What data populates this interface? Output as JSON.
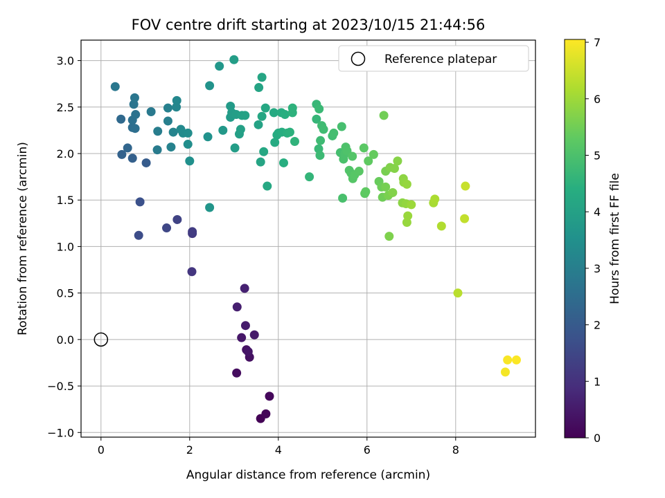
{
  "chart_data": {
    "type": "scatter",
    "title": "FOV centre drift starting at 2023/10/15 21:44:56",
    "xlabel": "Angular distance from reference (arcmin)",
    "ylabel": "Rotation from reference (arcmin)",
    "xlim": [
      -0.45,
      9.8
    ],
    "ylim": [
      -1.05,
      3.22
    ],
    "xticks": [
      0,
      2,
      4,
      6,
      8
    ],
    "yticks": [
      -1.0,
      -0.5,
      0.0,
      0.5,
      1.0,
      1.5,
      2.0,
      2.5,
      3.0
    ],
    "xtick_labels": [
      "0",
      "2",
      "4",
      "6",
      "8"
    ],
    "ytick_labels": [
      "−1.0",
      "−0.5",
      "0.0",
      "0.5",
      "1.0",
      "1.5",
      "2.0",
      "2.5",
      "3.0"
    ],
    "grid": true,
    "colormap": "viridis",
    "colorbar": {
      "label": "Hours from first FF file",
      "min": 0,
      "max": 7.05,
      "ticks": [
        0,
        1,
        2,
        3,
        4,
        5,
        6,
        7
      ],
      "tick_labels": [
        "0",
        "1",
        "2",
        "3",
        "4",
        "5",
        "6",
        "7"
      ]
    },
    "legend": {
      "placement": "top-right",
      "entries": [
        "Reference platepar"
      ]
    },
    "reference": {
      "x": 0,
      "y": 0
    },
    "points": [
      {
        "x": 3.6,
        "y": -0.85,
        "t": 0.05
      },
      {
        "x": 3.72,
        "y": -0.8,
        "t": 0.1
      },
      {
        "x": 3.8,
        "y": -0.61,
        "t": 0.15
      },
      {
        "x": 3.06,
        "y": -0.36,
        "t": 0.25
      },
      {
        "x": 3.35,
        "y": -0.19,
        "t": 0.3
      },
      {
        "x": 3.28,
        "y": -0.11,
        "t": 0.35
      },
      {
        "x": 3.32,
        "y": -0.13,
        "t": 0.4
      },
      {
        "x": 3.17,
        "y": 0.02,
        "t": 0.45
      },
      {
        "x": 3.46,
        "y": 0.05,
        "t": 0.5
      },
      {
        "x": 3.26,
        "y": 0.15,
        "t": 0.55
      },
      {
        "x": 3.07,
        "y": 0.35,
        "t": 0.6
      },
      {
        "x": 3.24,
        "y": 0.55,
        "t": 0.65
      },
      {
        "x": 2.05,
        "y": 0.73,
        "t": 1.1
      },
      {
        "x": 2.06,
        "y": 1.14,
        "t": 1.2
      },
      {
        "x": 2.06,
        "y": 1.16,
        "t": 1.25
      },
      {
        "x": 1.72,
        "y": 1.29,
        "t": 1.4
      },
      {
        "x": 1.48,
        "y": 1.2,
        "t": 1.5
      },
      {
        "x": 0.85,
        "y": 1.12,
        "t": 1.65
      },
      {
        "x": 0.88,
        "y": 1.48,
        "t": 1.75
      },
      {
        "x": 1.02,
        "y": 1.9,
        "t": 2.05
      },
      {
        "x": 0.71,
        "y": 1.95,
        "t": 2.15
      },
      {
        "x": 0.47,
        "y": 1.99,
        "t": 2.2
      },
      {
        "x": 0.6,
        "y": 2.06,
        "t": 2.3
      },
      {
        "x": 0.45,
        "y": 2.37,
        "t": 2.4
      },
      {
        "x": 0.71,
        "y": 2.28,
        "t": 2.5
      },
      {
        "x": 0.77,
        "y": 2.27,
        "t": 2.55
      },
      {
        "x": 0.71,
        "y": 2.36,
        "t": 2.6
      },
      {
        "x": 0.78,
        "y": 2.42,
        "t": 2.65
      },
      {
        "x": 0.74,
        "y": 2.53,
        "t": 2.7
      },
      {
        "x": 0.76,
        "y": 2.6,
        "t": 2.75
      },
      {
        "x": 0.32,
        "y": 2.72,
        "t": 2.8
      },
      {
        "x": 1.13,
        "y": 2.45,
        "t": 2.85
      },
      {
        "x": 1.27,
        "y": 2.04,
        "t": 2.9
      },
      {
        "x": 1.28,
        "y": 2.24,
        "t": 2.95
      },
      {
        "x": 1.51,
        "y": 2.35,
        "t": 3.0
      },
      {
        "x": 1.51,
        "y": 2.49,
        "t": 3.05
      },
      {
        "x": 1.58,
        "y": 2.07,
        "t": 3.1
      },
      {
        "x": 1.63,
        "y": 2.23,
        "t": 3.15
      },
      {
        "x": 1.7,
        "y": 2.5,
        "t": 3.2
      },
      {
        "x": 1.71,
        "y": 2.57,
        "t": 3.25
      },
      {
        "x": 1.8,
        "y": 2.26,
        "t": 3.3
      },
      {
        "x": 1.85,
        "y": 2.22,
        "t": 3.35
      },
      {
        "x": 1.96,
        "y": 2.22,
        "t": 3.4
      },
      {
        "x": 1.96,
        "y": 2.1,
        "t": 3.45
      },
      {
        "x": 2.0,
        "y": 1.92,
        "t": 3.5
      },
      {
        "x": 2.41,
        "y": 2.18,
        "t": 3.55
      },
      {
        "x": 2.45,
        "y": 2.73,
        "t": 3.6
      },
      {
        "x": 2.45,
        "y": 1.42,
        "t": 3.65
      },
      {
        "x": 2.67,
        "y": 2.94,
        "t": 3.7
      },
      {
        "x": 2.75,
        "y": 2.25,
        "t": 3.75
      },
      {
        "x": 2.92,
        "y": 2.51,
        "t": 3.8
      },
      {
        "x": 2.92,
        "y": 2.39,
        "t": 3.82
      },
      {
        "x": 2.95,
        "y": 2.44,
        "t": 3.85
      },
      {
        "x": 3.0,
        "y": 3.01,
        "t": 3.88
      },
      {
        "x": 3.02,
        "y": 2.06,
        "t": 3.9
      },
      {
        "x": 3.05,
        "y": 2.42,
        "t": 3.92
      },
      {
        "x": 3.12,
        "y": 2.21,
        "t": 3.95
      },
      {
        "x": 3.15,
        "y": 2.26,
        "t": 3.98
      },
      {
        "x": 3.18,
        "y": 2.41,
        "t": 4.0
      },
      {
        "x": 3.25,
        "y": 2.41,
        "t": 4.02
      },
      {
        "x": 3.55,
        "y": 2.31,
        "t": 4.05
      },
      {
        "x": 3.56,
        "y": 2.71,
        "t": 4.08
      },
      {
        "x": 3.6,
        "y": 1.91,
        "t": 4.1
      },
      {
        "x": 3.63,
        "y": 2.82,
        "t": 4.12
      },
      {
        "x": 3.63,
        "y": 2.4,
        "t": 4.15
      },
      {
        "x": 3.67,
        "y": 2.02,
        "t": 4.18
      },
      {
        "x": 3.71,
        "y": 2.49,
        "t": 4.2
      },
      {
        "x": 3.75,
        "y": 1.65,
        "t": 4.22
      },
      {
        "x": 3.9,
        "y": 2.44,
        "t": 4.25
      },
      {
        "x": 3.92,
        "y": 2.12,
        "t": 4.28
      },
      {
        "x": 3.97,
        "y": 2.2,
        "t": 4.3
      },
      {
        "x": 4.0,
        "y": 2.22,
        "t": 4.32
      },
      {
        "x": 4.07,
        "y": 2.44,
        "t": 4.35
      },
      {
        "x": 4.08,
        "y": 2.23,
        "t": 4.38
      },
      {
        "x": 4.12,
        "y": 1.9,
        "t": 4.4
      },
      {
        "x": 4.15,
        "y": 2.42,
        "t": 4.42
      },
      {
        "x": 4.2,
        "y": 2.22,
        "t": 4.45
      },
      {
        "x": 4.26,
        "y": 2.23,
        "t": 4.48
      },
      {
        "x": 4.32,
        "y": 2.44,
        "t": 4.5
      },
      {
        "x": 4.32,
        "y": 2.49,
        "t": 4.52
      },
      {
        "x": 4.37,
        "y": 2.13,
        "t": 4.55
      },
      {
        "x": 4.7,
        "y": 1.75,
        "t": 4.6
      },
      {
        "x": 4.86,
        "y": 2.37,
        "t": 4.65
      },
      {
        "x": 4.86,
        "y": 2.53,
        "t": 4.68
      },
      {
        "x": 4.91,
        "y": 2.05,
        "t": 4.7
      },
      {
        "x": 4.92,
        "y": 2.48,
        "t": 4.72
      },
      {
        "x": 4.94,
        "y": 1.98,
        "t": 4.75
      },
      {
        "x": 4.95,
        "y": 2.14,
        "t": 4.78
      },
      {
        "x": 4.98,
        "y": 2.3,
        "t": 4.8
      },
      {
        "x": 5.02,
        "y": 2.26,
        "t": 4.82
      },
      {
        "x": 5.22,
        "y": 2.19,
        "t": 4.85
      },
      {
        "x": 5.25,
        "y": 2.22,
        "t": 4.88
      },
      {
        "x": 5.4,
        "y": 2.01,
        "t": 4.9
      },
      {
        "x": 5.43,
        "y": 2.29,
        "t": 4.92
      },
      {
        "x": 5.45,
        "y": 1.52,
        "t": 4.95
      },
      {
        "x": 5.47,
        "y": 1.94,
        "t": 4.98
      },
      {
        "x": 5.5,
        "y": 2.0,
        "t": 5.0
      },
      {
        "x": 5.52,
        "y": 2.07,
        "t": 5.02
      },
      {
        "x": 5.55,
        "y": 2.03,
        "t": 5.05
      },
      {
        "x": 5.6,
        "y": 1.82,
        "t": 5.08
      },
      {
        "x": 5.64,
        "y": 1.79,
        "t": 5.1
      },
      {
        "x": 5.67,
        "y": 1.97,
        "t": 5.12
      },
      {
        "x": 5.68,
        "y": 1.73,
        "t": 5.15
      },
      {
        "x": 5.72,
        "y": 1.77,
        "t": 5.18
      },
      {
        "x": 5.82,
        "y": 1.81,
        "t": 5.2
      },
      {
        "x": 5.93,
        "y": 2.06,
        "t": 5.22
      },
      {
        "x": 5.95,
        "y": 1.57,
        "t": 5.25
      },
      {
        "x": 5.97,
        "y": 1.59,
        "t": 5.28
      },
      {
        "x": 6.03,
        "y": 1.92,
        "t": 5.3
      },
      {
        "x": 6.15,
        "y": 1.99,
        "t": 5.35
      },
      {
        "x": 6.27,
        "y": 1.7,
        "t": 5.4
      },
      {
        "x": 6.33,
        "y": 1.64,
        "t": 5.45
      },
      {
        "x": 6.35,
        "y": 1.53,
        "t": 5.48
      },
      {
        "x": 6.38,
        "y": 2.41,
        "t": 5.5
      },
      {
        "x": 6.42,
        "y": 1.64,
        "t": 5.55
      },
      {
        "x": 6.42,
        "y": 1.81,
        "t": 5.58
      },
      {
        "x": 6.48,
        "y": 1.55,
        "t": 5.6
      },
      {
        "x": 6.5,
        "y": 1.11,
        "t": 5.65
      },
      {
        "x": 6.52,
        "y": 1.85,
        "t": 5.68
      },
      {
        "x": 6.58,
        "y": 1.58,
        "t": 5.7
      },
      {
        "x": 6.62,
        "y": 1.84,
        "t": 5.72
      },
      {
        "x": 6.69,
        "y": 1.92,
        "t": 5.75
      },
      {
        "x": 6.8,
        "y": 1.47,
        "t": 5.8
      },
      {
        "x": 6.82,
        "y": 1.73,
        "t": 5.82
      },
      {
        "x": 6.83,
        "y": 1.69,
        "t": 5.85
      },
      {
        "x": 6.88,
        "y": 1.46,
        "t": 5.88
      },
      {
        "x": 6.9,
        "y": 1.67,
        "t": 5.9
      },
      {
        "x": 6.9,
        "y": 1.26,
        "t": 5.92
      },
      {
        "x": 6.92,
        "y": 1.33,
        "t": 5.95
      },
      {
        "x": 7.0,
        "y": 1.45,
        "t": 5.98
      },
      {
        "x": 7.5,
        "y": 1.47,
        "t": 6.1
      },
      {
        "x": 7.53,
        "y": 1.51,
        "t": 6.15
      },
      {
        "x": 7.68,
        "y": 1.22,
        "t": 6.2
      },
      {
        "x": 8.05,
        "y": 0.5,
        "t": 6.3
      },
      {
        "x": 8.2,
        "y": 1.3,
        "t": 6.4
      },
      {
        "x": 8.22,
        "y": 1.65,
        "t": 6.45
      },
      {
        "x": 9.12,
        "y": -0.35,
        "t": 6.95
      },
      {
        "x": 9.17,
        "y": -0.22,
        "t": 7.0
      },
      {
        "x": 9.37,
        "y": -0.22,
        "t": 7.03
      }
    ]
  }
}
